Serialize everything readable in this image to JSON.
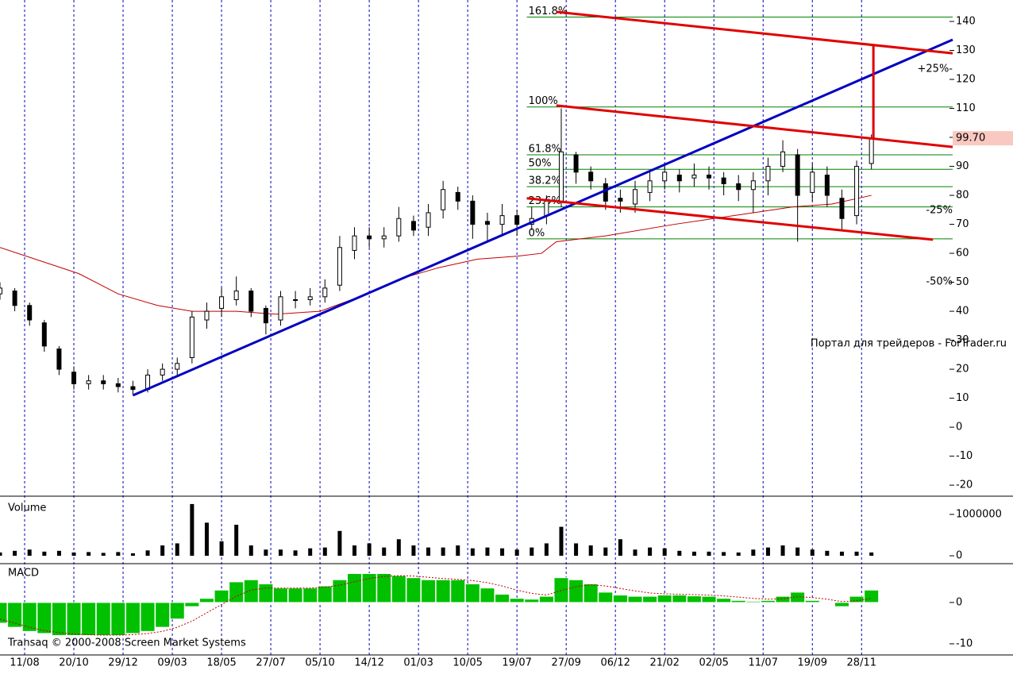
{
  "chart_data": [
    {
      "type": "candlestick",
      "xlim": [
        0,
        193.5
      ],
      "ylim": [
        -23.8,
        147.4
      ],
      "yticks": [
        -20,
        -10,
        0,
        10,
        20,
        30,
        40,
        50,
        60,
        70,
        80,
        90,
        100,
        110,
        120,
        130,
        140
      ],
      "x": [
        0,
        3,
        6,
        9,
        12,
        15,
        18,
        21,
        24,
        27,
        30,
        33,
        36,
        39,
        42,
        45,
        48,
        51,
        54,
        57,
        60,
        63,
        66,
        69,
        72,
        75,
        78,
        81,
        84,
        87,
        90,
        93,
        96,
        99,
        102,
        105,
        108,
        111,
        114,
        117,
        120,
        123,
        126,
        129,
        132,
        135,
        138,
        141,
        144,
        147,
        150,
        153,
        156,
        159,
        162,
        165,
        168,
        171,
        174,
        177
      ],
      "open": [
        46,
        47,
        42,
        36,
        27,
        19,
        15,
        16,
        15,
        14,
        13,
        18,
        20,
        24,
        37,
        41,
        44,
        47,
        41,
        37,
        44,
        44,
        45,
        49,
        61,
        66,
        65,
        66,
        71,
        69,
        75,
        81,
        78,
        71,
        70,
        73,
        70,
        73,
        78,
        94,
        88,
        84,
        79,
        77,
        81,
        85,
        87,
        86,
        87,
        86,
        84,
        82,
        85,
        90,
        94,
        81,
        87,
        79,
        73,
        91
      ],
      "high": [
        50,
        48,
        43,
        37,
        28,
        21,
        18,
        18,
        17,
        16,
        20,
        22,
        24,
        40,
        43,
        48,
        52,
        48,
        42,
        47,
        47,
        48,
        51,
        66,
        69,
        69,
        69,
        76,
        73,
        77,
        85,
        83,
        80,
        74,
        77,
        75,
        76,
        80,
        110,
        95,
        90,
        86,
        82,
        85,
        88,
        91,
        89,
        91,
        90,
        88,
        87,
        88,
        93,
        99,
        96,
        91,
        90,
        82,
        92,
        101
      ],
      "low": [
        44,
        40,
        35,
        26,
        18,
        13,
        13,
        13,
        12,
        11,
        12,
        16,
        18,
        22,
        34,
        38,
        42,
        38,
        32,
        35,
        41,
        42,
        43,
        47,
        58,
        62,
        62,
        64,
        66,
        66,
        72,
        75,
        65,
        64,
        66,
        66,
        68,
        70,
        76,
        84,
        82,
        75,
        74,
        74,
        78,
        82,
        81,
        83,
        82,
        80,
        78,
        74,
        80,
        88,
        64,
        78,
        76,
        68,
        70,
        89
      ],
      "close": [
        48,
        42,
        37,
        28,
        20,
        15,
        16,
        15,
        14,
        13,
        18,
        20,
        22,
        38,
        40,
        45,
        47,
        40,
        36,
        45,
        44,
        45,
        48,
        62,
        66,
        65,
        66,
        72,
        68,
        74,
        82,
        78,
        70,
        70,
        73,
        70,
        72,
        78,
        95,
        88,
        85,
        78,
        78,
        82,
        85,
        88,
        85,
        87,
        86,
        84,
        82,
        85,
        90,
        95,
        80,
        88,
        80,
        72,
        90,
        99.7
      ],
      "moving_average": {
        "color": "#c00000",
        "x": [
          0,
          16,
          24,
          32,
          39,
          48,
          56,
          65,
          73,
          81,
          89,
          97,
          105,
          110,
          113,
          123,
          137,
          153,
          161,
          169,
          177
        ],
        "values": [
          62,
          53,
          46,
          42,
          40,
          40,
          39,
          40,
          45,
          51,
          55,
          58,
          59,
          60,
          64,
          66,
          70,
          74,
          76,
          77,
          80
        ]
      },
      "trend_lines": [
        {
          "color": "#0000c0",
          "x": [
            27,
            193.5
          ],
          "y": [
            11,
            133.7
          ]
        },
        {
          "color": "#e00000",
          "x": [
            113,
            193.5
          ],
          "y": [
            143.3,
            129
          ]
        },
        {
          "color": "#e00000",
          "x": [
            113,
            193.5
          ],
          "y": [
            111,
            96.7
          ]
        },
        {
          "color": "#e00000",
          "x": [
            107,
            189.5
          ],
          "y": [
            79,
            64.7
          ]
        },
        {
          "color": "#e00000",
          "x": [
            177.4,
            177.4
          ],
          "y": [
            99.7,
            131.5
          ]
        }
      ],
      "fib_start": 107,
      "fib_color": "#008000",
      "fib_levels": [
        {
          "label": "161.8%",
          "value": 141.5
        },
        {
          "label": "100%",
          "value": 110.5
        },
        {
          "label": "61.8%",
          "value": 94
        },
        {
          "label": "50%",
          "value": 89
        },
        {
          "label": "38.2%",
          "value": 83
        },
        {
          "label": "23.6%",
          "value": 76
        },
        {
          "label": "0%",
          "value": 65
        }
      ],
      "percent_labels": [
        {
          "label": "+25%-",
          "value": 123.6,
          "color": "#008000"
        },
        {
          "label": "-25%",
          "value": 74.8,
          "color": "#c00000"
        },
        {
          "label": "-50%",
          "value": 50.1,
          "color": "#c00000"
        }
      ],
      "last_price": {
        "value": 99.7,
        "label": "99.70"
      },
      "watermark": "Портал для трейдеров - ForTrader.ru"
    },
    {
      "type": "bar",
      "title": "Volume",
      "color": "#000000",
      "ylim": [
        -190000,
        1440000
      ],
      "yticks": [
        0,
        1000000
      ],
      "x": [
        0,
        3,
        6,
        9,
        12,
        15,
        18,
        21,
        24,
        27,
        30,
        33,
        36,
        39,
        42,
        45,
        48,
        51,
        54,
        57,
        60,
        63,
        66,
        69,
        72,
        75,
        78,
        81,
        84,
        87,
        90,
        93,
        96,
        99,
        102,
        105,
        108,
        111,
        114,
        117,
        120,
        123,
        126,
        129,
        132,
        135,
        138,
        141,
        144,
        147,
        150,
        153,
        156,
        159,
        162,
        165,
        168,
        171,
        174,
        177
      ],
      "values": [
        80000,
        120000,
        150000,
        100000,
        120000,
        80000,
        90000,
        70000,
        90000,
        60000,
        130000,
        250000,
        300000,
        1250000,
        800000,
        350000,
        750000,
        250000,
        150000,
        150000,
        130000,
        180000,
        200000,
        600000,
        250000,
        300000,
        200000,
        400000,
        250000,
        200000,
        200000,
        250000,
        180000,
        200000,
        180000,
        150000,
        200000,
        300000,
        700000,
        300000,
        250000,
        200000,
        400000,
        150000,
        200000,
        180000,
        120000,
        100000,
        100000,
        90000,
        80000,
        150000,
        200000,
        250000,
        200000,
        150000,
        120000,
        100000,
        100000,
        80000
      ]
    },
    {
      "type": "macd",
      "title": "MACD",
      "color": "#00c000",
      "signal_color": "#c00000",
      "ylim": [
        -12.7,
        9.4
      ],
      "yticks": [
        -10,
        0
      ],
      "x": [
        0,
        3,
        6,
        9,
        12,
        15,
        18,
        21,
        24,
        27,
        30,
        33,
        36,
        39,
        42,
        45,
        48,
        51,
        54,
        57,
        60,
        63,
        66,
        69,
        72,
        75,
        78,
        81,
        84,
        87,
        90,
        93,
        96,
        99,
        102,
        105,
        108,
        111,
        114,
        117,
        120,
        123,
        126,
        129,
        132,
        135,
        138,
        141,
        144,
        147,
        150,
        153,
        156,
        159,
        162,
        165,
        168,
        171,
        174,
        177
      ],
      "values": [
        -5,
        -6,
        -7,
        -7.5,
        -8,
        -8,
        -8,
        -8,
        -8,
        -7.5,
        -7,
        -6,
        -4,
        -1,
        1,
        3,
        5,
        5.5,
        4.5,
        3.5,
        3.5,
        3.5,
        4,
        5.5,
        7,
        7,
        7,
        6.5,
        6,
        5.5,
        5.5,
        5.5,
        4.5,
        3.5,
        2,
        1,
        0.8,
        1.5,
        6,
        5.5,
        4.5,
        2.5,
        1.8,
        1.5,
        1.5,
        1.8,
        1.8,
        1.6,
        1.5,
        1,
        0.5,
        0.3,
        0.5,
        1.5,
        2.5,
        0.5,
        0,
        -1,
        1.5,
        3
      ],
      "signal": [
        -4,
        -5,
        -6,
        -6.8,
        -7.3,
        -7.6,
        -7.8,
        -7.9,
        -7.9,
        -7.8,
        -7.5,
        -7,
        -6,
        -4.5,
        -2.5,
        -0.5,
        1.5,
        3,
        3.5,
        3.5,
        3.5,
        3.5,
        3.7,
        4.2,
        5,
        5.8,
        6.3,
        6.5,
        6.4,
        6.1,
        5.8,
        5.6,
        5.3,
        4.8,
        4,
        3,
        2.2,
        1.8,
        2.9,
        3.8,
        4.3,
        4,
        3.4,
        2.8,
        2.3,
        2.1,
        2,
        1.9,
        1.8,
        1.6,
        1.3,
        1,
        0.8,
        0.9,
        1.4,
        1.2,
        0.8,
        0.2,
        0.4,
        1
      ],
      "xticks": [
        {
          "value": 5,
          "label": "11/08"
        },
        {
          "value": 15,
          "label": "20/10"
        },
        {
          "value": 25,
          "label": "29/12"
        },
        {
          "value": 35,
          "label": "09/03"
        },
        {
          "value": 45,
          "label": "18/05"
        },
        {
          "value": 55,
          "label": "27/07"
        },
        {
          "value": 65,
          "label": "05/10"
        },
        {
          "value": 75,
          "label": "14/12"
        },
        {
          "value": 85,
          "label": "01/03"
        },
        {
          "value": 95,
          "label": "10/05"
        },
        {
          "value": 105,
          "label": "19/07"
        },
        {
          "value": 115,
          "label": "27/09"
        },
        {
          "value": 125,
          "label": "06/12"
        },
        {
          "value": 135,
          "label": "21/02"
        },
        {
          "value": 145,
          "label": "02/05"
        },
        {
          "value": 155,
          "label": "11/07"
        },
        {
          "value": 165,
          "label": "19/09"
        },
        {
          "value": 175,
          "label": "28/11"
        }
      ],
      "copyright": "Transaq © 2000-2008 Screen Market Systems"
    }
  ]
}
